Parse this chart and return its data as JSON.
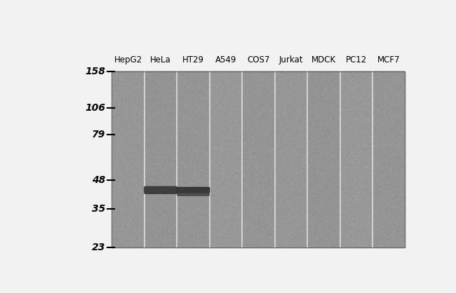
{
  "lane_labels": [
    "HepG2",
    "HeLa",
    "HT29",
    "A549",
    "COS7",
    "Jurkat",
    "MDCK",
    "PC12",
    "MCF7"
  ],
  "mw_markers": [
    158,
    106,
    79,
    48,
    35,
    23
  ],
  "bg_color": "#aaaaaa",
  "white_bg": "#f2f2f2",
  "fig_width": 6.5,
  "fig_height": 4.18,
  "dpi": 100,
  "label_fontsize": 8.5,
  "mw_fontsize": 10
}
